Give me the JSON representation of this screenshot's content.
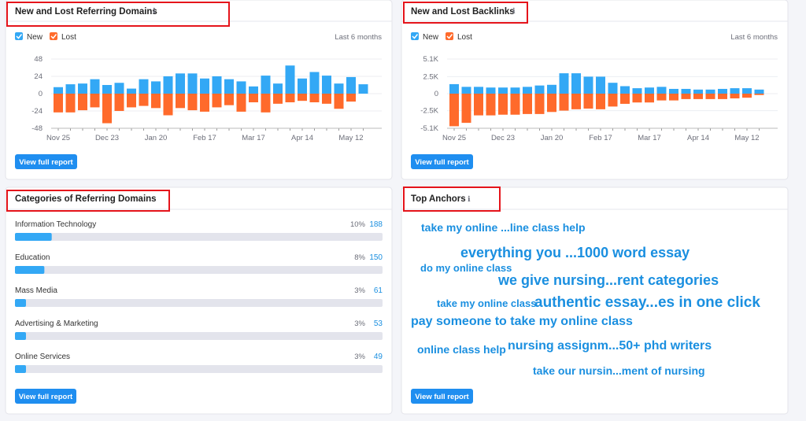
{
  "panels": {
    "referring_domains": {
      "title": "New and Lost Referring Domains",
      "period": "Last 6 months",
      "button": "View full report",
      "chart_data": {
        "type": "bar",
        "stacked": true,
        "categories": [
          "Nov 25",
          null,
          null,
          null,
          "Dec 23",
          null,
          null,
          null,
          "Jan 20",
          null,
          null,
          null,
          "Feb 17",
          null,
          null,
          null,
          "Mar 17",
          null,
          null,
          null,
          "Apr 14",
          null,
          null,
          null,
          "May 12",
          null
        ],
        "series": [
          {
            "name": "New",
            "color": "#33a8f5",
            "values": [
              9,
              13,
              14,
              20,
              12,
              15,
              7,
              20,
              17,
              24,
              28,
              28,
              21,
              24,
              20,
              17,
              10,
              25,
              14,
              39,
              21,
              30,
              25,
              14,
              23,
              13
            ]
          },
          {
            "name": "Lost",
            "color": "#ff6a2b",
            "values": [
              -26,
              -26,
              -23,
              -19,
              -41,
              -24,
              -19,
              -17,
              -20,
              -30,
              -20,
              -23,
              -25,
              -19,
              -16,
              -25,
              -12,
              -26,
              -14,
              -12,
              -10,
              -12,
              -14,
              -21,
              -11,
              0
            ]
          }
        ],
        "ylim": [
          -48,
          48
        ],
        "yticks": [
          -48,
          -24,
          0,
          24,
          48
        ]
      }
    },
    "backlinks": {
      "title": "New and Lost Backlinks",
      "period": "Last 6 months",
      "button": "View full report",
      "chart_data": {
        "type": "bar",
        "stacked": true,
        "categories": [
          "Nov 25",
          null,
          null,
          null,
          "Dec 23",
          null,
          null,
          null,
          "Jan 20",
          null,
          null,
          null,
          "Feb 17",
          null,
          null,
          null,
          "Mar 17",
          null,
          null,
          null,
          "Apr 14",
          null,
          null,
          null,
          "May 12",
          null
        ],
        "series": [
          {
            "name": "New",
            "color": "#33a8f5",
            "values": [
              1400,
              1000,
              1000,
              900,
              900,
              900,
              1000,
              1200,
              1300,
              3000,
              3000,
              2500,
              2500,
              1600,
              1100,
              800,
              900,
              1000,
              700,
              700,
              600,
              600,
              700,
              800,
              800,
              600
            ]
          },
          {
            "name": "Lost",
            "color": "#ff6a2b",
            "values": [
              -4800,
              -4300,
              -3200,
              -3200,
              -3100,
              -3100,
              -3000,
              -3000,
              -2700,
              -2500,
              -2300,
              -2200,
              -2300,
              -1900,
              -1500,
              -1300,
              -1300,
              -1000,
              -1000,
              -800,
              -800,
              -800,
              -800,
              -700,
              -600,
              -200
            ]
          }
        ],
        "ylim": [
          -5100,
          5100
        ],
        "yticks": [
          {
            "value": -5100,
            "label": "-5.1K"
          },
          {
            "value": -2500,
            "label": "-2.5K"
          },
          0,
          {
            "value": 2500,
            "label": "2.5K"
          },
          {
            "value": 5100,
            "label": "5.1K"
          }
        ]
      }
    },
    "categories": {
      "title": "Categories of Referring Domains",
      "button": "View full report",
      "rows": [
        {
          "name": "Information Technology",
          "share": "10%",
          "count": "188"
        },
        {
          "name": "Education",
          "share": "8%",
          "count": "150"
        },
        {
          "name": "Mass Media",
          "share": "3%",
          "count": "61"
        },
        {
          "name": "Advertising & Marketing",
          "share": "3%",
          "count": "53"
        },
        {
          "name": "Online Services",
          "share": "3%",
          "count": "49"
        }
      ]
    },
    "anchors": {
      "title": "Top Anchors",
      "button": "View full report",
      "items": [
        "take my online ...line class help",
        "everything you ...1000 word essay",
        "do my online class",
        "we give nursing...rent categories",
        "take my online class",
        "authentic essay...es in one click",
        "pay someone to take my online class",
        "online class help",
        "nursing assignm...50+ phd writers",
        "take our nursin...ment of nursing"
      ]
    }
  }
}
